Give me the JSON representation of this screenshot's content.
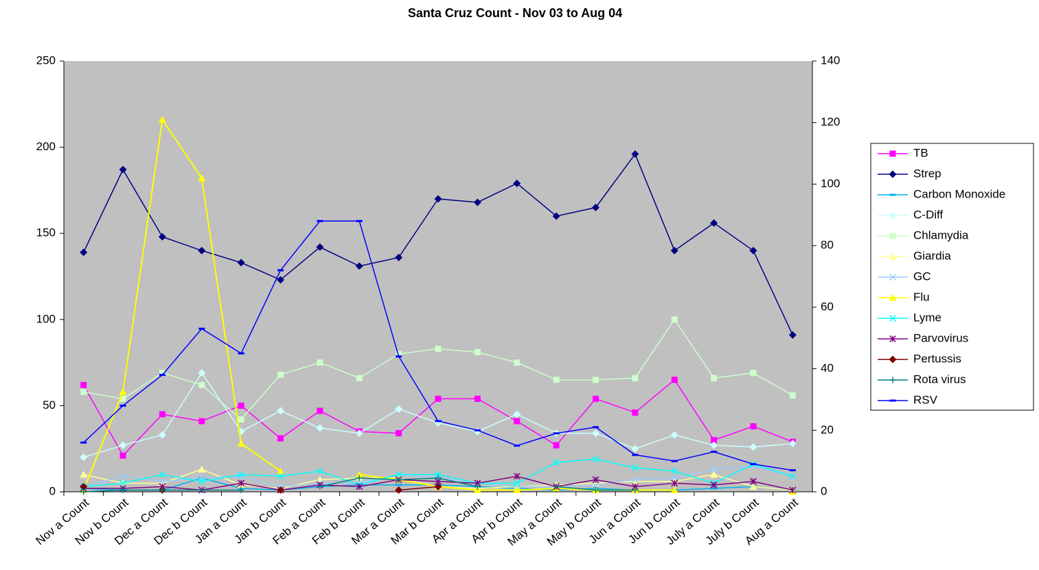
{
  "chart_data": {
    "type": "line",
    "title": "Santa Cruz Count - Nov 03 to Aug 04",
    "categories": [
      "Nov a Count",
      "Nov b Count",
      "Dec a Count",
      "Dec b Count",
      "Jan a Count",
      "Jan b Count",
      "Feb a Count",
      "Feb b Count",
      "Mar a Count",
      "Mar b Count",
      "Apr a Count",
      "Apr b Count",
      "May a Count",
      "May b Count",
      "Jun a Count",
      "Jun b Count",
      "July a Count",
      "July b Count",
      "Aug a Count"
    ],
    "ylim": [
      0,
      250
    ],
    "yticks": [
      0,
      50,
      100,
      150,
      200,
      250
    ],
    "y2lim": [
      0,
      140
    ],
    "y2ticks": [
      0,
      20,
      40,
      60,
      80,
      100,
      120,
      140
    ],
    "legend": "right",
    "series": [
      {
        "name": "TB",
        "color": "#ff00ff",
        "marker": "square",
        "values": [
          62,
          21,
          45,
          41,
          50,
          31,
          47,
          35,
          34,
          54,
          54,
          41,
          27,
          54,
          46,
          65,
          30,
          38,
          29
        ]
      },
      {
        "name": "Strep",
        "color": "#000080",
        "marker": "diamond",
        "values": [
          139,
          187,
          148,
          140,
          133,
          123,
          142,
          131,
          136,
          170,
          168,
          179,
          160,
          165,
          196,
          140,
          156,
          140,
          91
        ]
      },
      {
        "name": "Carbon Monoxide",
        "color": "#00b0f0",
        "marker": "dash",
        "values": [
          2,
          1,
          1,
          8,
          2,
          1,
          3,
          4,
          4,
          4,
          3,
          2,
          1,
          2,
          1,
          1,
          2,
          3,
          1
        ]
      },
      {
        "name": "C-Diff",
        "color": "#ccffff",
        "marker": "diamond",
        "values": [
          20,
          27,
          33,
          69,
          35,
          47,
          37,
          34,
          48,
          40,
          35,
          45,
          34,
          34,
          25,
          33,
          27,
          26,
          28
        ]
      },
      {
        "name": "Chlamydia",
        "color": "#ccffcc",
        "marker": "square",
        "values": [
          58,
          54,
          69,
          62,
          42,
          68,
          75,
          66,
          80,
          83,
          81,
          75,
          65,
          65,
          66,
          100,
          66,
          69,
          56
        ]
      },
      {
        "name": "Giardia",
        "color": "#ffff99",
        "marker": "triangle",
        "values": [
          10,
          5,
          5,
          13,
          4,
          2,
          7,
          8,
          8,
          3,
          2,
          3,
          4,
          5,
          6,
          6,
          10,
          3,
          1
        ]
      },
      {
        "name": "GC",
        "color": "#99ccff",
        "marker": "x",
        "values": [
          3,
          9,
          6,
          8,
          9,
          3,
          5,
          5,
          10,
          8,
          5,
          3,
          3,
          4,
          7,
          8,
          13,
          15,
          9
        ]
      },
      {
        "name": "Flu",
        "color": "#ffff00",
        "marker": "triangle",
        "values": [
          1,
          58,
          216,
          182,
          28,
          12,
          null,
          10,
          7,
          3,
          1,
          1,
          2,
          1,
          1,
          1,
          null,
          null,
          0
        ]
      },
      {
        "name": "Lyme",
        "color": "#00ffff",
        "marker": "x",
        "values": [
          3,
          5,
          10,
          6,
          10,
          9,
          12,
          4,
          10,
          10,
          5,
          5,
          17,
          19,
          14,
          12,
          5,
          16,
          9
        ]
      },
      {
        "name": "Parvovirus",
        "color": "#800080",
        "marker": "star",
        "values": [
          2,
          2,
          3,
          1,
          5,
          1,
          4,
          3,
          7,
          6,
          5,
          9,
          3,
          7,
          3,
          5,
          4,
          6,
          1
        ]
      },
      {
        "name": "Pertussis",
        "color": "#800000",
        "marker": "diamond",
        "values": [
          3,
          null,
          1,
          null,
          null,
          1,
          null,
          null,
          1,
          3,
          null,
          null,
          null,
          null,
          null,
          null,
          null,
          null,
          null
        ]
      },
      {
        "name": "Rota virus",
        "color": "#008080",
        "marker": "plus",
        "values": [
          0,
          1,
          1,
          1,
          1,
          null,
          3,
          8,
          7,
          8,
          3,
          null,
          3,
          1,
          1,
          null,
          null,
          null,
          null
        ]
      },
      {
        "name": "RSV",
        "color": "#0000ff",
        "marker": "dash",
        "axis": "y2",
        "values": [
          16,
          28,
          38,
          53,
          45,
          72,
          88,
          88,
          44,
          23,
          20,
          15,
          19,
          21,
          12,
          10,
          13,
          9,
          7
        ]
      }
    ]
  }
}
